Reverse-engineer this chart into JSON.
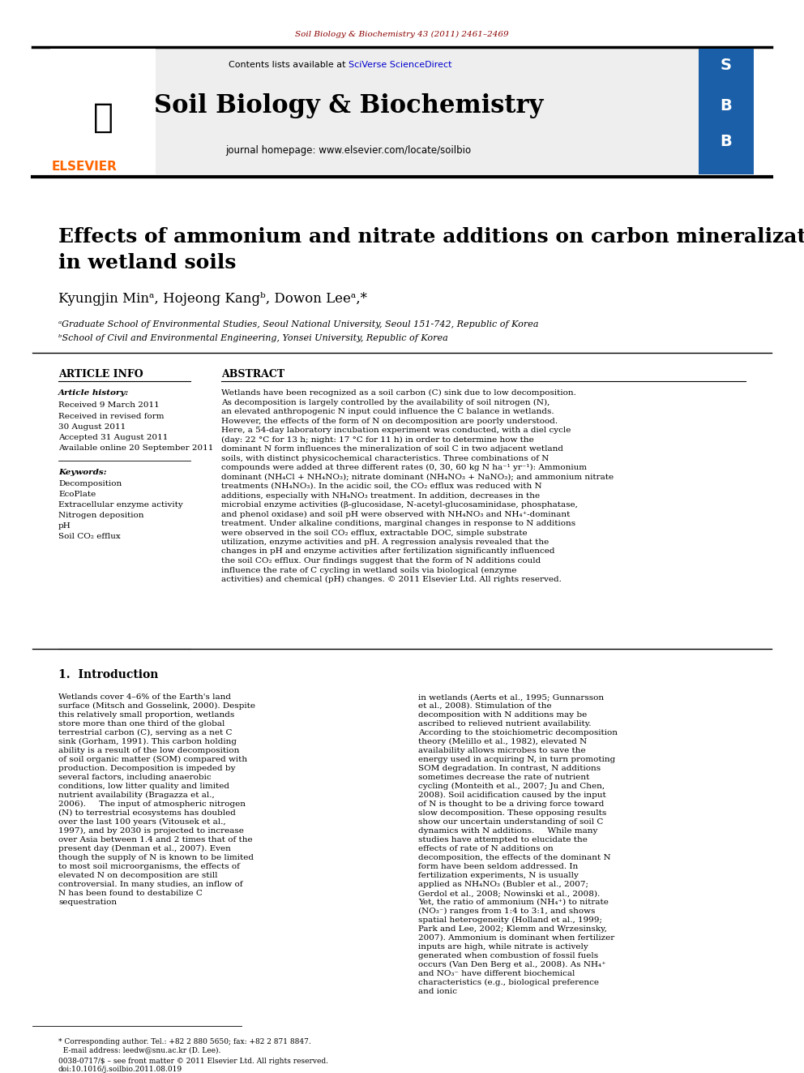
{
  "journal_ref": "Soil Biology & Biochemistry 43 (2011) 2461–2469",
  "journal_name": "Soil Biology & Biochemistry",
  "journal_homepage": "journal homepage: www.elsevier.com/locate/soilbio",
  "contents_text": "Contents lists available at SciVerse ScienceDirect",
  "elsevier_text": "ELSEVIER",
  "paper_title": "Effects of ammonium and nitrate additions on carbon mineralization\nin wetland soils",
  "authors": "Kyungjin Minᵃ, Hojeong Kangᵇ, Dowon Leeᵃ,*",
  "affiliation_a": "ᵃGraduate School of Environmental Studies, Seoul National University, Seoul 151-742, Republic of Korea",
  "affiliation_b": "ᵇSchool of Civil and Environmental Engineering, Yonsei University, Republic of Korea",
  "article_info_header": "ARTICLE INFO",
  "abstract_header": "ABSTRACT",
  "article_history_label": "Article history:",
  "received_1": "Received 9 March 2011",
  "received_revised": "Received in revised form",
  "received_revised_date": "30 August 2011",
  "accepted": "Accepted 31 August 2011",
  "available": "Available online 20 September 2011",
  "keywords_label": "Keywords:",
  "keywords": [
    "Decomposition",
    "EcoPlate",
    "Extracellular enzyme activity",
    "Nitrogen deposition",
    "pH",
    "Soil CO₂ efflux"
  ],
  "abstract_text": "Wetlands have been recognized as a soil carbon (C) sink due to low decomposition. As decomposition is largely controlled by the availability of soil nitrogen (N), an elevated anthropogenic N input could influence the C balance in wetlands. However, the effects of the form of N on decomposition are poorly understood. Here, a 54-day laboratory incubation experiment was conducted, with a diel cycle (day: 22 °C for 13 h; night: 17 °C for 11 h) in order to determine how the dominant N form influences the mineralization of soil C in two adjacent wetland soils, with distinct physicochemical characteristics. Three combinations of N compounds were added at three different rates (0, 30, 60 kg N ha⁻¹ yr⁻¹): Ammonium dominant (NH₄Cl + NH₄NO₃); nitrate dominant (NH₄NO₃ + NaNO₃); and ammonium nitrate treatments (NH₄NO₃). In the acidic soil, the CO₂ efflux was reduced with N additions, especially with NH₄NO₃ treatment. In addition, decreases in the microbial enzyme activities (β-glucosidase, N-acetyl-glucosaminidase, phosphatase, and phenol oxidase) and soil pH were observed with NH₄NO₃ and NH₄⁺-dominant treatment. Under alkaline conditions, marginal changes in response to N additions were observed in the soil CO₂ efflux, extractable DOC, simple substrate utilization, enzyme activities and pH. A regression analysis revealed that the changes in pH and enzyme activities after fertilization significantly influenced the soil CO₂ efflux. Our findings suggest that the form of N additions could influence the rate of C cycling in wetland soils via biological (enzyme activities) and chemical (pH) changes.\n© 2011 Elsevier Ltd. All rights reserved.",
  "intro_header": "1.  Introduction",
  "intro_col1": "Wetlands cover 4–6% of the Earth's land surface (Mitsch and Gosselink, 2000). Despite this relatively small proportion, wetlands store more than one third of the global terrestrial carbon (C), serving as a net C sink (Gorham, 1991). This carbon holding ability is a result of the low decomposition of soil organic matter (SOM) compared with production. Decomposition is impeded by several factors, including anaerobic conditions, low litter quality and limited nutrient availability (Bragazza et al., 2006).\n    The input of atmospheric nitrogen (N) to terrestrial ecosystems has doubled over the last 100 years (Vitousek et al., 1997), and by 2030 is projected to increase over Asia between 1.4 and 2 times that of the present day (Denman et al., 2007). Even though the supply of N is known to be limited to most soil microorganisms, the effects of elevated N on decomposition are still controversial. In many studies, an inflow of N has been found to destabilize C sequestration",
  "intro_col2": "in wetlands (Aerts et al., 1995; Gunnarsson et al., 2008). Stimulation of the decomposition with N additions may be ascribed to relieved nutrient availability. According to the stoichiometric decomposition theory (Melillo et al., 1982), elevated N availability allows microbes to save the energy used in acquiring N, in turn promoting SOM degradation. In contrast, N additions sometimes decrease the rate of nutrient cycling (Monteith et al., 2007; Ju and Chen, 2008). Soil acidification caused by the input of N is thought to be a driving force toward slow decomposition. These opposing results show our uncertain understanding of soil C dynamics with N additions.\n    While many studies have attempted to elucidate the effects of rate of N additions on decomposition, the effects of the dominant N form have been seldom addressed. In fertilization experiments, N is usually applied as NH₄NO₃ (Bubler et al., 2007; Gerdol et al., 2008; Nowinski et al., 2008). Yet, the ratio of ammonium (NH₄⁺) to nitrate (NO₃⁻) ranges from 1:4 to 3:1, and shows spatial heterogeneity (Holland et al., 1999; Park and Lee, 2002; Klemm and Wrzesinsky, 2007). Ammonium is dominant when fertilizer inputs are high, while nitrate is actively generated when combustion of fossil fuels occurs (Van Den Berg et al., 2008). As NH₄⁺ and NO₃⁻ have different biochemical characteristics (e.g., biological preference and ionic",
  "footer_text": "* Corresponding author. Tel.: +82 2 880 5650; fax: +82 2 871 8847.\n  E-mail address: leedw@snu.ac.kr (D. Lee).",
  "copyright_footer": "0038-0717/$ – see front matter © 2011 Elsevier Ltd. All rights reserved.\ndoi:10.1016/j.soilbio.2011.08.019",
  "bg_color": "#ffffff",
  "header_bg": "#f0f0f0",
  "journal_ref_color": "#8B0000",
  "elsevier_orange": "#FF6600",
  "link_color": "#0000CD",
  "title_color": "#000000",
  "section_line_color": "#000000"
}
